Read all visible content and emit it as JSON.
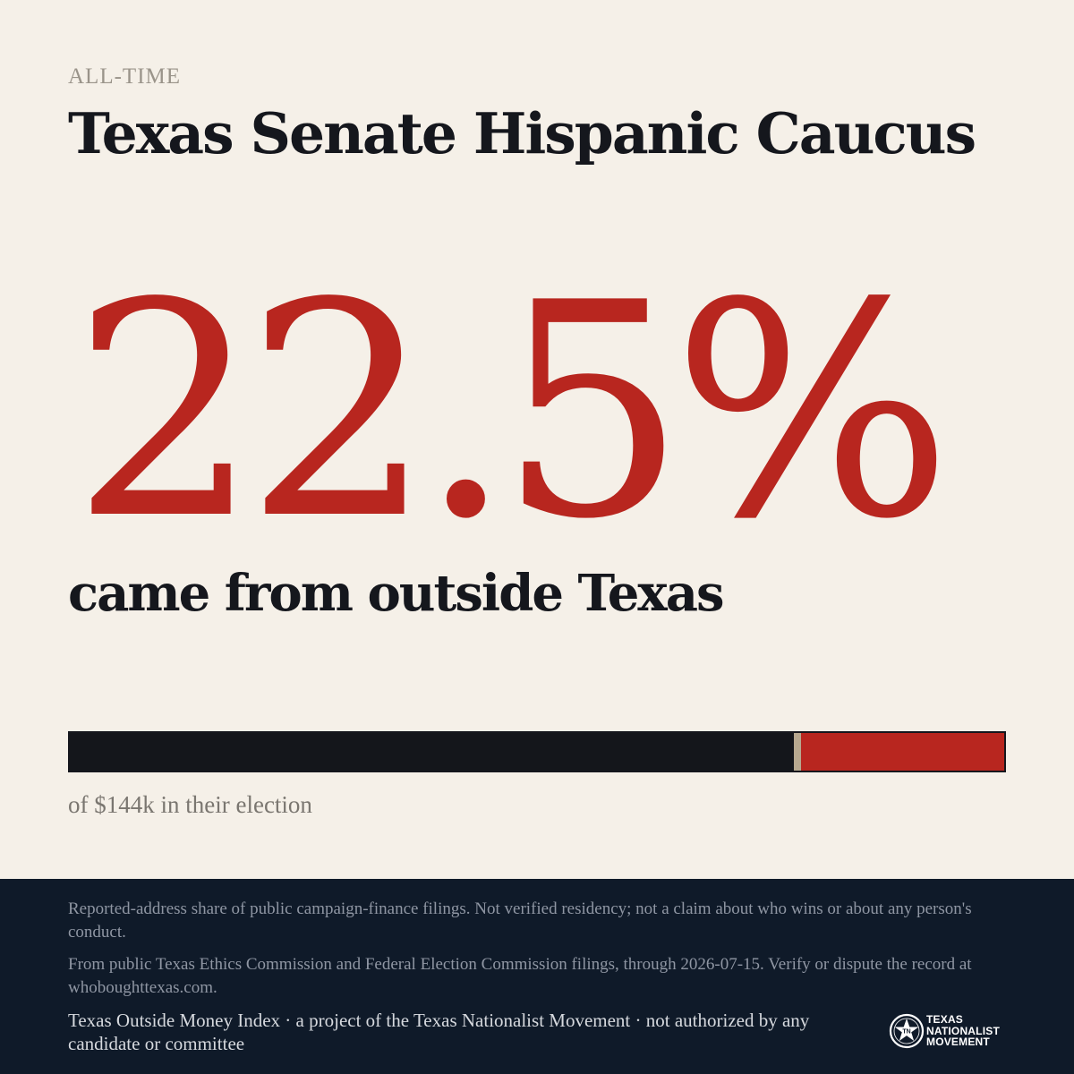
{
  "header": {
    "eyebrow": "ALL-TIME",
    "title": "Texas Senate Hispanic Caucus"
  },
  "headline": {
    "value": "22.5%",
    "subtitle": "came from outside Texas"
  },
  "bar": {
    "outside_share_percent": 22.5,
    "inside_color": "#14161b",
    "outside_color": "#b8261f",
    "divider_color": "#b7a88f",
    "caption": "of $144k in their election"
  },
  "footer": {
    "disclaimer": "Reported-address share of public campaign-finance filings. Not verified residency; not a claim about who wins or about any person's conduct.",
    "source": "From public Texas Ethics Commission and Federal Election Commission filings, through 2026-07-15. Verify or dispute the record at whoboughttexas.com.",
    "credit": "Texas Outside Money Index · a project of the Texas Nationalist Movement · not authorized by any candidate or committee",
    "logo": {
      "icon": "star-seal-icon",
      "line1": "TEXAS",
      "line2": "NATIONALIST",
      "line3": "MOVEMENT"
    }
  },
  "colors": {
    "background": "#f5f0e8",
    "accent_red": "#b8261f",
    "ink": "#15171d",
    "footer_bg": "#0f1a29"
  }
}
